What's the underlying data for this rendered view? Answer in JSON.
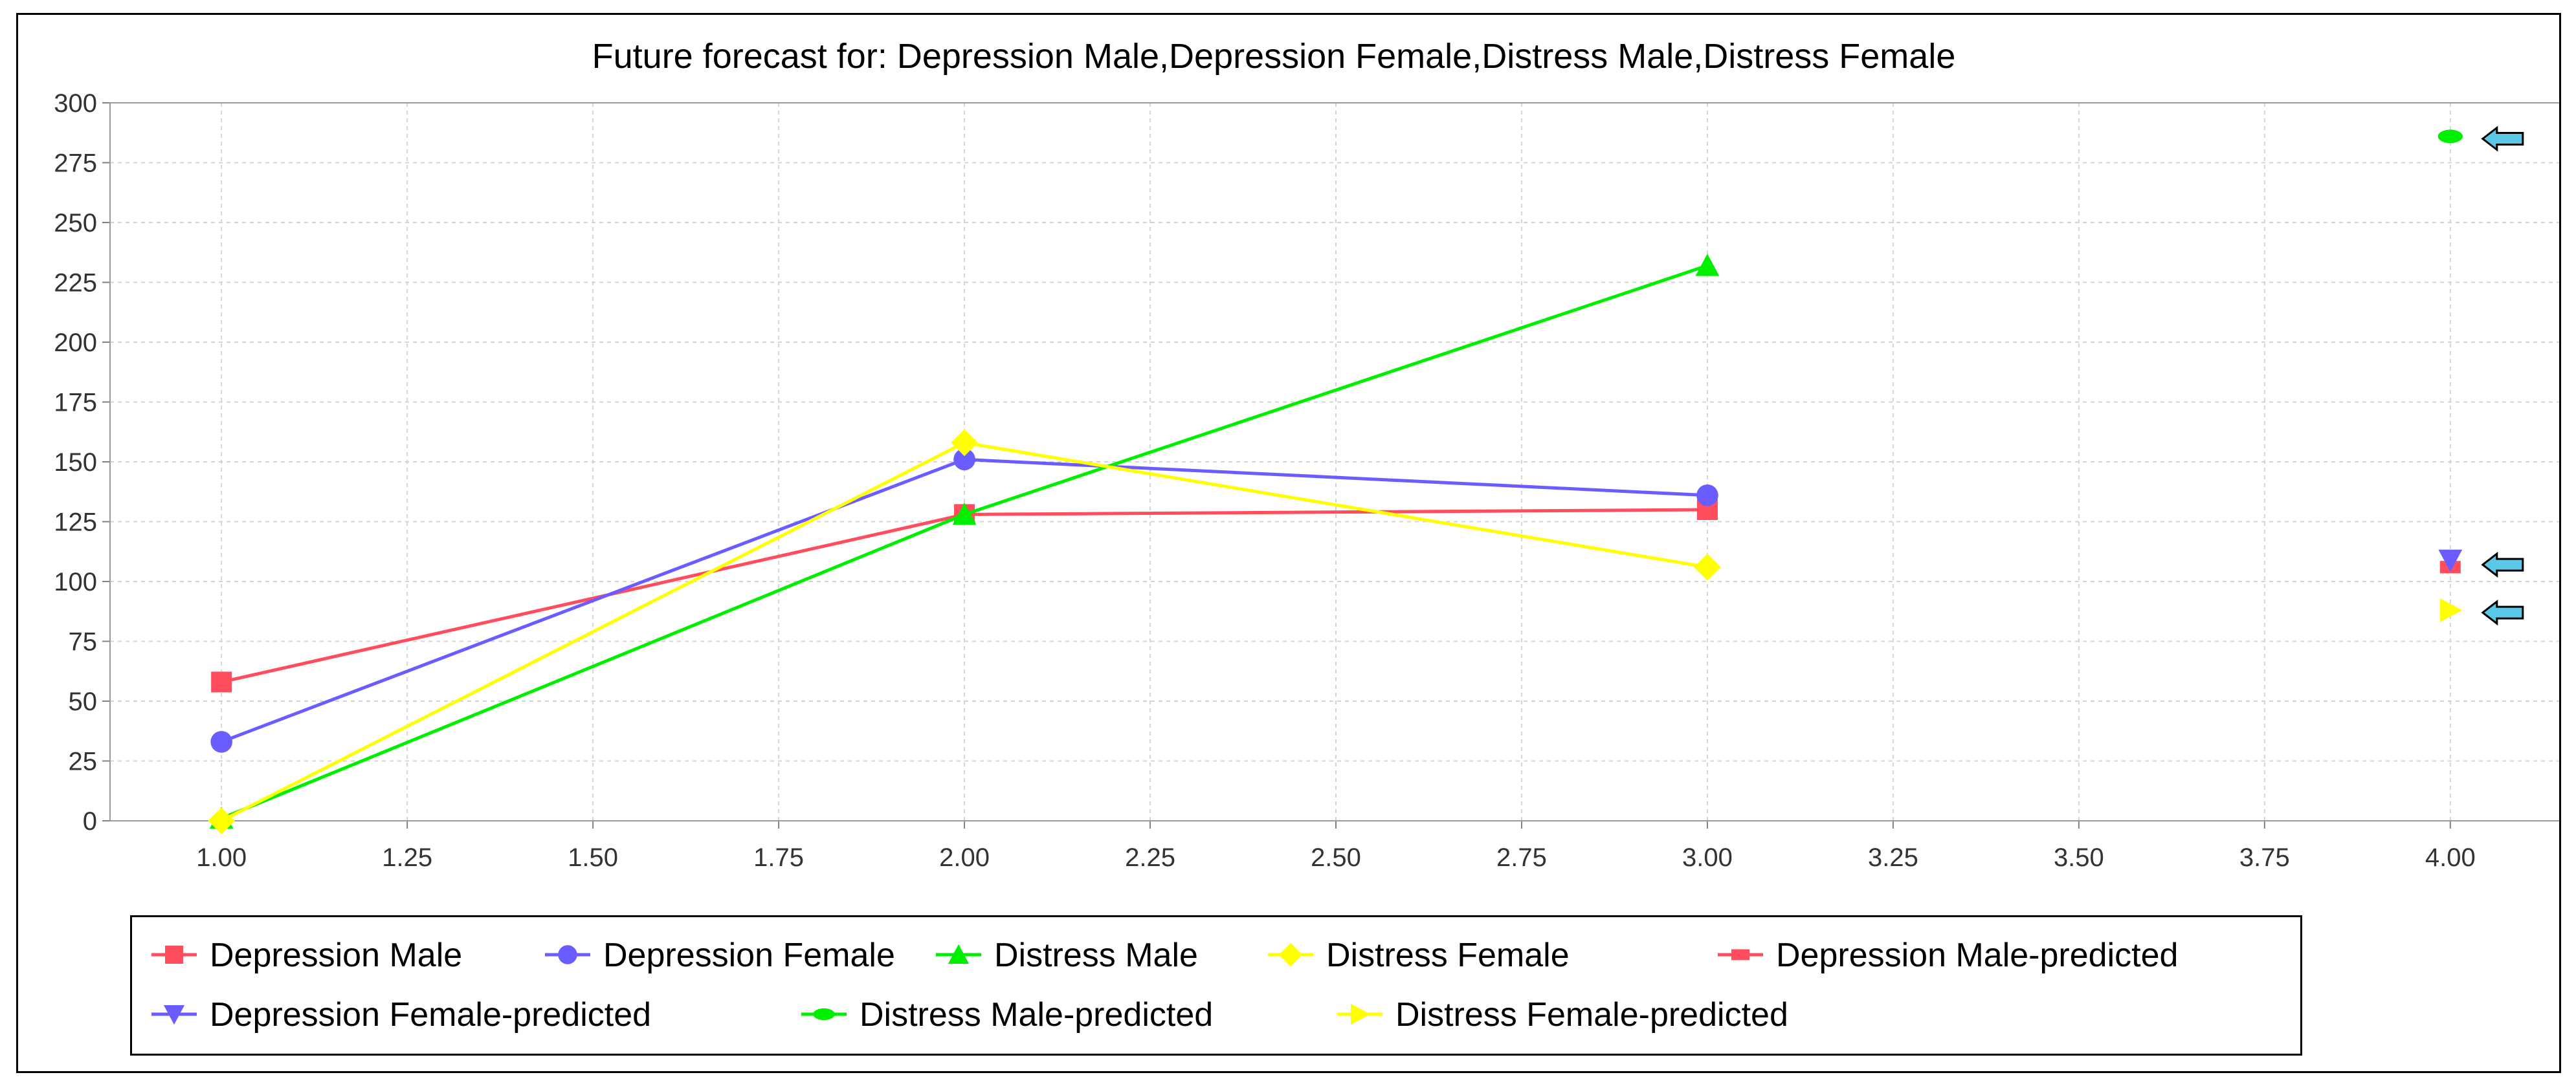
{
  "chart_data": {
    "type": "line",
    "title": "Future forecast for: Depression Male,Depression Female,Distress Male,Distress Female",
    "xlabel": "",
    "ylabel": "",
    "xlim": [
      0.85,
      4.15
    ],
    "ylim": [
      0,
      300
    ],
    "x_ticks": [
      "1.00",
      "1.25",
      "1.50",
      "1.75",
      "2.00",
      "2.25",
      "2.50",
      "2.75",
      "3.00",
      "3.25",
      "3.50",
      "3.75",
      "4.00"
    ],
    "y_ticks": [
      "0",
      "25",
      "50",
      "75",
      "100",
      "125",
      "150",
      "175",
      "200",
      "225",
      "250",
      "275",
      "300"
    ],
    "grid": true,
    "legend_position": "bottom",
    "series": [
      {
        "name": "Depression Male",
        "color": "#ff4d5e",
        "marker": "square",
        "line": true,
        "x": [
          1,
          2,
          3
        ],
        "values": [
          58,
          128,
          130
        ]
      },
      {
        "name": "Depression Female",
        "color": "#6b5cff",
        "marker": "circle",
        "line": true,
        "x": [
          1,
          2,
          3
        ],
        "values": [
          33,
          151,
          136
        ]
      },
      {
        "name": "Distress Male",
        "color": "#00ee00",
        "marker": "triangle-up",
        "line": true,
        "x": [
          1,
          2,
          3
        ],
        "values": [
          1,
          128,
          232
        ]
      },
      {
        "name": "Distress Female",
        "color": "#ffff00",
        "marker": "diamond",
        "line": true,
        "x": [
          1,
          2,
          3
        ],
        "values": [
          0,
          158,
          106
        ]
      },
      {
        "name": "Depression Male-predicted",
        "color": "#ff4d5e",
        "marker": "hbar",
        "line": false,
        "x": [
          4
        ],
        "values": [
          106
        ]
      },
      {
        "name": "Depression Female-predicted",
        "color": "#6b5cff",
        "marker": "triangle-down",
        "line": false,
        "x": [
          4
        ],
        "values": [
          109
        ]
      },
      {
        "name": "Distress Male-predicted",
        "color": "#00ee00",
        "marker": "ellipse",
        "line": false,
        "x": [
          4
        ],
        "values": [
          286
        ]
      },
      {
        "name": "Distress Female-predicted",
        "color": "#ffff00",
        "marker": "triangle-right",
        "line": false,
        "x": [
          4
        ],
        "values": [
          88
        ]
      }
    ],
    "annotations": [
      {
        "type": "arrow-left",
        "x": 4,
        "y": 285,
        "color": "#5bc8e8"
      },
      {
        "type": "arrow-left",
        "x": 4,
        "y": 107,
        "color": "#5bc8e8"
      },
      {
        "type": "arrow-left",
        "x": 4,
        "y": 87,
        "color": "#5bc8e8"
      }
    ]
  }
}
